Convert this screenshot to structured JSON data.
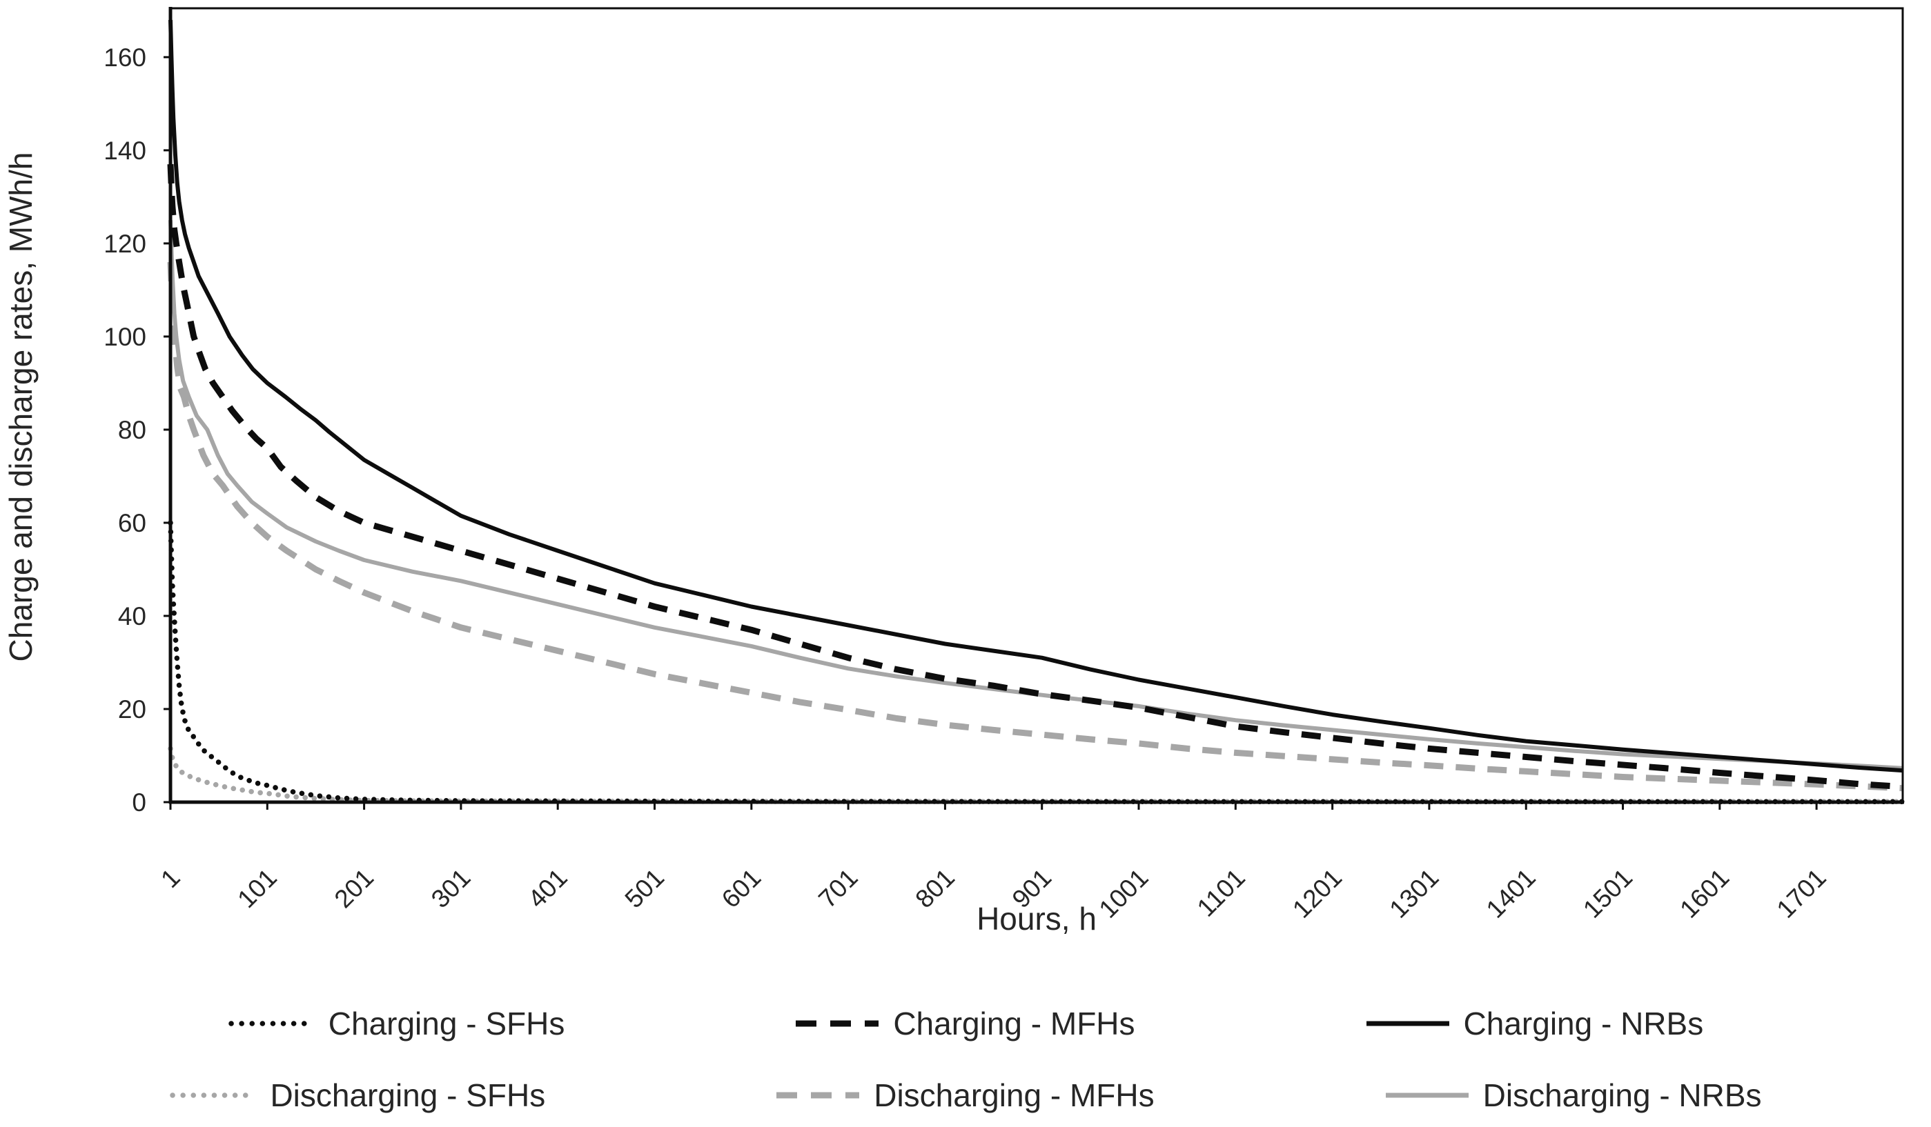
{
  "chart_data": {
    "type": "line",
    "title": "",
    "xlabel": "Hours, h",
    "ylabel": "Charge and discharge rates, MWh/h",
    "xlim": [
      1,
      1790
    ],
    "ylim": [
      0,
      170.5
    ],
    "x_ticks": [
      1,
      101,
      201,
      301,
      401,
      501,
      601,
      701,
      801,
      901,
      1001,
      1101,
      1201,
      1301,
      1401,
      1501,
      1601,
      1701
    ],
    "y_ticks": [
      0,
      20,
      40,
      60,
      80,
      100,
      120,
      140,
      160
    ],
    "grid": false,
    "legend_position": "bottom",
    "colors": {
      "black": "#0d0d0d",
      "gray": "#a6a6a6",
      "text": "#262626"
    },
    "legend_rows": [
      [
        "Charging - SFHs",
        "Charging - MFHs",
        "Charging - NRBs"
      ],
      [
        "Discharging - SFHs",
        "Discharging - MFHs",
        "Discharging - NRBs"
      ]
    ],
    "series": [
      {
        "name": "Charging - SFHs",
        "color": "black",
        "line_style": "dotted",
        "z": 4,
        "points": [
          [
            1,
            60
          ],
          [
            2,
            53
          ],
          [
            3,
            47
          ],
          [
            4,
            43
          ],
          [
            6,
            36
          ],
          [
            8,
            30
          ],
          [
            10,
            25
          ],
          [
            12,
            21.5
          ],
          [
            15,
            18
          ],
          [
            20,
            15.3
          ],
          [
            25,
            14
          ],
          [
            30,
            12.5
          ],
          [
            36,
            11
          ],
          [
            45,
            9.5
          ],
          [
            50,
            8.7
          ],
          [
            60,
            7
          ],
          [
            70,
            5.6
          ],
          [
            80,
            4.8
          ],
          [
            90,
            4.1
          ],
          [
            101,
            3.6
          ],
          [
            115,
            2.8
          ],
          [
            130,
            2.1
          ],
          [
            151,
            1.4
          ],
          [
            175,
            0.9
          ],
          [
            201,
            0.6
          ],
          [
            251,
            0.4
          ],
          [
            301,
            0.3
          ],
          [
            401,
            0.25
          ],
          [
            501,
            0.2
          ],
          [
            701,
            0.15
          ],
          [
            1001,
            0.12
          ],
          [
            1401,
            0.1
          ],
          [
            1790,
            0.1
          ]
        ]
      },
      {
        "name": "Charging - MFHs",
        "color": "black",
        "line_style": "dashed",
        "z": 5,
        "points": [
          [
            1,
            137
          ],
          [
            2,
            132
          ],
          [
            3,
            128
          ],
          [
            5,
            123
          ],
          [
            7,
            120
          ],
          [
            10,
            116
          ],
          [
            14,
            111
          ],
          [
            18,
            107
          ],
          [
            22,
            103
          ],
          [
            25,
            100
          ],
          [
            30,
            97
          ],
          [
            37,
            93
          ],
          [
            45,
            90
          ],
          [
            55,
            87
          ],
          [
            65,
            84
          ],
          [
            81,
            80
          ],
          [
            90,
            78
          ],
          [
            101,
            76
          ],
          [
            115,
            72
          ],
          [
            131,
            69
          ],
          [
            151,
            65.5
          ],
          [
            175,
            62.5
          ],
          [
            201,
            60
          ],
          [
            251,
            57
          ],
          [
            301,
            54
          ],
          [
            351,
            51
          ],
          [
            401,
            48
          ],
          [
            451,
            45
          ],
          [
            501,
            42
          ],
          [
            551,
            39.5
          ],
          [
            601,
            37
          ],
          [
            651,
            34
          ],
          [
            701,
            31
          ],
          [
            751,
            28.5
          ],
          [
            801,
            26.5
          ],
          [
            851,
            25
          ],
          [
            901,
            23.2
          ],
          [
            951,
            21.8
          ],
          [
            1001,
            20.3
          ],
          [
            1051,
            18.3
          ],
          [
            1101,
            16.3
          ],
          [
            1151,
            15
          ],
          [
            1201,
            13.8
          ],
          [
            1251,
            12.6
          ],
          [
            1301,
            11.5
          ],
          [
            1351,
            10.6
          ],
          [
            1401,
            9.7
          ],
          [
            1451,
            8.8
          ],
          [
            1501,
            8
          ],
          [
            1551,
            7.2
          ],
          [
            1601,
            6.3
          ],
          [
            1651,
            5.5
          ],
          [
            1701,
            4.7
          ],
          [
            1745,
            3.9
          ],
          [
            1790,
            3.3
          ]
        ]
      },
      {
        "name": "Charging - NRBs",
        "color": "black",
        "line_style": "solid",
        "z": 6,
        "points": [
          [
            1,
            168
          ],
          [
            2,
            160
          ],
          [
            3,
            153
          ],
          [
            4,
            147
          ],
          [
            6,
            139
          ],
          [
            8,
            133
          ],
          [
            10,
            129
          ],
          [
            13,
            125
          ],
          [
            16,
            122
          ],
          [
            20,
            119
          ],
          [
            25,
            116
          ],
          [
            30,
            113
          ],
          [
            40,
            109
          ],
          [
            50,
            105
          ],
          [
            62,
            100
          ],
          [
            75,
            96
          ],
          [
            86,
            93
          ],
          [
            101,
            90
          ],
          [
            120,
            87
          ],
          [
            135,
            84.5
          ],
          [
            151,
            82
          ],
          [
            165,
            79.5
          ],
          [
            201,
            73.5
          ],
          [
            226,
            70.5
          ],
          [
            251,
            67.5
          ],
          [
            276,
            64.5
          ],
          [
            301,
            61.5
          ],
          [
            351,
            57.5
          ],
          [
            401,
            54
          ],
          [
            451,
            50.5
          ],
          [
            501,
            47
          ],
          [
            551,
            44.5
          ],
          [
            601,
            42
          ],
          [
            651,
            40
          ],
          [
            701,
            38
          ],
          [
            751,
            36
          ],
          [
            801,
            34
          ],
          [
            851,
            32.5
          ],
          [
            901,
            31
          ],
          [
            951,
            28.5
          ],
          [
            1001,
            26.3
          ],
          [
            1051,
            24.4
          ],
          [
            1101,
            22.5
          ],
          [
            1151,
            20.6
          ],
          [
            1201,
            18.8
          ],
          [
            1251,
            17.3
          ],
          [
            1301,
            15.9
          ],
          [
            1351,
            14.4
          ],
          [
            1401,
            13.1
          ],
          [
            1451,
            12.2
          ],
          [
            1501,
            11.3
          ],
          [
            1551,
            10.5
          ],
          [
            1601,
            9.7
          ],
          [
            1651,
            8.9
          ],
          [
            1701,
            8.1
          ],
          [
            1745,
            7.4
          ],
          [
            1790,
            6.8
          ]
        ]
      },
      {
        "name": "Discharging - SFHs",
        "color": "gray",
        "line_style": "dotted",
        "z": 1,
        "points": [
          [
            1,
            11.5
          ],
          [
            3,
            9.5
          ],
          [
            6,
            8
          ],
          [
            11,
            6.7
          ],
          [
            15,
            6.1
          ],
          [
            20,
            5.6
          ],
          [
            25,
            5.2
          ],
          [
            30,
            4.8
          ],
          [
            36,
            4.4
          ],
          [
            45,
            3.9
          ],
          [
            61,
            3.1
          ],
          [
            75,
            2.6
          ],
          [
            89,
            2.1
          ],
          [
            101,
            1.9
          ],
          [
            115,
            1.5
          ],
          [
            125,
            1.2
          ],
          [
            151,
            0.8
          ],
          [
            179,
            0.5
          ],
          [
            201,
            0.35
          ],
          [
            251,
            0.25
          ],
          [
            301,
            0.2
          ],
          [
            501,
            0.15
          ],
          [
            1001,
            0.1
          ],
          [
            1790,
            0.1
          ]
        ]
      },
      {
        "name": "Discharging - MFHs",
        "color": "gray",
        "line_style": "dashed",
        "z": 2,
        "points": [
          [
            1,
            116
          ],
          [
            2,
            111
          ],
          [
            3,
            107
          ],
          [
            5,
            100
          ],
          [
            8,
            93.5
          ],
          [
            11,
            89
          ],
          [
            15,
            87
          ],
          [
            20,
            83
          ],
          [
            25,
            80
          ],
          [
            35,
            74.5
          ],
          [
            45,
            70.5
          ],
          [
            55,
            68
          ],
          [
            70,
            63.5
          ],
          [
            85,
            60
          ],
          [
            101,
            57
          ],
          [
            121,
            54
          ],
          [
            151,
            50
          ],
          [
            175,
            47.5
          ],
          [
            201,
            45
          ],
          [
            251,
            41
          ],
          [
            301,
            37.5
          ],
          [
            351,
            35
          ],
          [
            401,
            32.5
          ],
          [
            451,
            30
          ],
          [
            501,
            27.5
          ],
          [
            551,
            25.5
          ],
          [
            601,
            23.5
          ],
          [
            651,
            21.5
          ],
          [
            701,
            19.8
          ],
          [
            751,
            18
          ],
          [
            801,
            16.6
          ],
          [
            851,
            15.5
          ],
          [
            901,
            14.5
          ],
          [
            951,
            13.5
          ],
          [
            1001,
            12.6
          ],
          [
            1051,
            11.5
          ],
          [
            1101,
            10.6
          ],
          [
            1151,
            9.9
          ],
          [
            1201,
            9.2
          ],
          [
            1251,
            8.5
          ],
          [
            1301,
            7.9
          ],
          [
            1351,
            7.2
          ],
          [
            1401,
            6.6
          ],
          [
            1451,
            6
          ],
          [
            1501,
            5.4
          ],
          [
            1551,
            5
          ],
          [
            1601,
            4.6
          ],
          [
            1651,
            4.2
          ],
          [
            1701,
            3.8
          ],
          [
            1745,
            3.4
          ],
          [
            1790,
            3
          ]
        ]
      },
      {
        "name": "Discharging - NRBs",
        "color": "gray",
        "line_style": "solid",
        "z": 3,
        "points": [
          [
            1,
            125
          ],
          [
            2,
            119
          ],
          [
            3,
            113
          ],
          [
            5,
            105
          ],
          [
            7,
            100
          ],
          [
            10,
            95
          ],
          [
            14,
            90.5
          ],
          [
            20,
            87
          ],
          [
            28,
            83
          ],
          [
            39,
            80
          ],
          [
            50,
            74.5
          ],
          [
            60,
            70.5
          ],
          [
            70,
            68
          ],
          [
            85,
            64.5
          ],
          [
            101,
            62
          ],
          [
            121,
            59
          ],
          [
            151,
            56
          ],
          [
            175,
            54
          ],
          [
            201,
            52
          ],
          [
            251,
            49.5
          ],
          [
            301,
            47.5
          ],
          [
            351,
            45
          ],
          [
            401,
            42.5
          ],
          [
            451,
            40
          ],
          [
            501,
            37.5
          ],
          [
            551,
            35.5
          ],
          [
            601,
            33.5
          ],
          [
            651,
            31
          ],
          [
            701,
            28.7
          ],
          [
            751,
            27
          ],
          [
            801,
            25.6
          ],
          [
            851,
            24.3
          ],
          [
            901,
            23
          ],
          [
            951,
            21.8
          ],
          [
            1001,
            20.6
          ],
          [
            1051,
            19
          ],
          [
            1101,
            17.6
          ],
          [
            1151,
            16.5
          ],
          [
            1201,
            15.5
          ],
          [
            1251,
            14.5
          ],
          [
            1301,
            13.5
          ],
          [
            1351,
            12.6
          ],
          [
            1401,
            11.8
          ],
          [
            1451,
            11
          ],
          [
            1501,
            10.3
          ],
          [
            1551,
            9.8
          ],
          [
            1601,
            9.3
          ],
          [
            1651,
            8.8
          ],
          [
            1701,
            8.3
          ],
          [
            1745,
            7.8
          ],
          [
            1790,
            7.3
          ]
        ]
      }
    ]
  }
}
